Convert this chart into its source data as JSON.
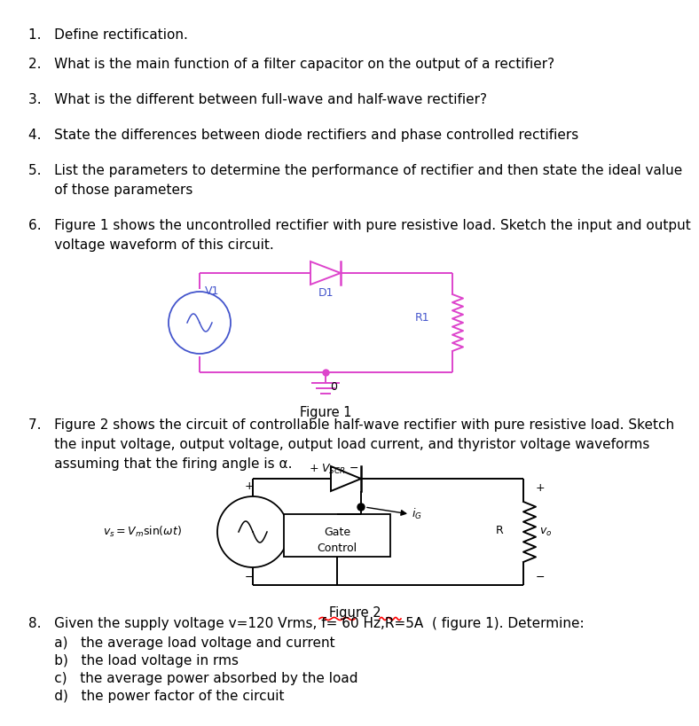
{
  "bg_color": "#ffffff",
  "cc": "#dd44cc",
  "cc2": "#4455cc",
  "black": "#000000",
  "red": "#ff0000",
  "q1": "1.   Define rectification.",
  "q2": "2.   What is the main function of a filter capacitor on the output of a rectifier?",
  "q3": "3.   What is the different between full-wave and half-wave rectifier?",
  "q4": "4.   State the differences between diode rectifiers and phase controlled rectifiers",
  "q5a": "5.   List the parameters to determine the performance of rectifier and then state the ideal value",
  "q5b": "      of those parameters",
  "q6a": "6.   Figure 1 shows the uncontrolled rectifier with pure resistive load. Sketch the input and output",
  "q6b": "      voltage waveform of this circuit.",
  "q7a": "7.   Figure 2 shows the circuit of controllable half-wave rectifier with pure resistive load. Sketch",
  "q7b": "      the input voltage, output voltage, output load current, and thyristor voltage waveforms",
  "q7c": "      assuming that the firing angle is α.",
  "q8": "8.   Given the supply voltage v=120 Vrms, f= 60 Hz,R=5A  ( figure 1). Determine:",
  "s8a": "      a)   the average load voltage and current",
  "s8b": "      b)   the load voltage in rms",
  "s8c": "      c)   the average power absorbed by the load",
  "s8d": "      d)   the power factor of the circuit",
  "fig1_cap": "Figure 1",
  "fig2_cap": "Figure 2",
  "fontsize": 11.0,
  "fontsize_small": 9.0,
  "lw": 1.4
}
